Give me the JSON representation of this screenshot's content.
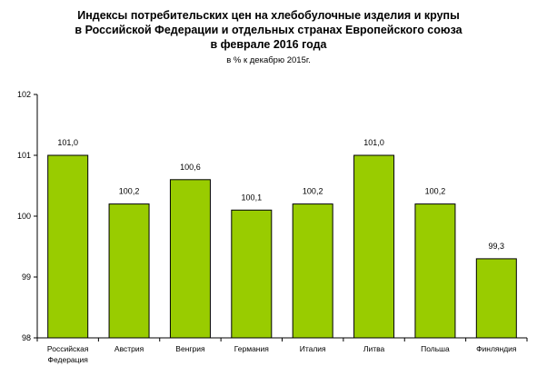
{
  "chart_data": {
    "type": "bar",
    "title_lines": [
      "Индексы потребительских цен на хлебобулочные изделия и крупы",
      "в Российской Федерации и отдельных странах Европейского союза",
      "в феврале 2016 года"
    ],
    "subtitle": "в % к декабрю 2015г.",
    "categories": [
      [
        "Российская",
        "Федерация"
      ],
      [
        "Австрия"
      ],
      [
        "Венгрия"
      ],
      [
        "Германия"
      ],
      [
        "Италия"
      ],
      [
        "Литва"
      ],
      [
        "Польша"
      ],
      [
        "Финляндия"
      ]
    ],
    "values": [
      101.0,
      100.2,
      100.6,
      100.1,
      100.2,
      101.0,
      100.2,
      99.3
    ],
    "value_labels": [
      "101,0",
      "100,2",
      "100,6",
      "100,1",
      "100,2",
      "101,0",
      "100,2",
      "99,3"
    ],
    "ylim": [
      98,
      102
    ],
    "yticks": [
      98,
      99,
      100,
      101,
      102
    ],
    "ytick_labels": [
      "98",
      "99",
      "100",
      "101",
      "102"
    ],
    "grid": false,
    "legend": "none",
    "colors": {
      "bar": "#99cc00",
      "bar_border": "#000000",
      "axis": "#000000"
    }
  }
}
